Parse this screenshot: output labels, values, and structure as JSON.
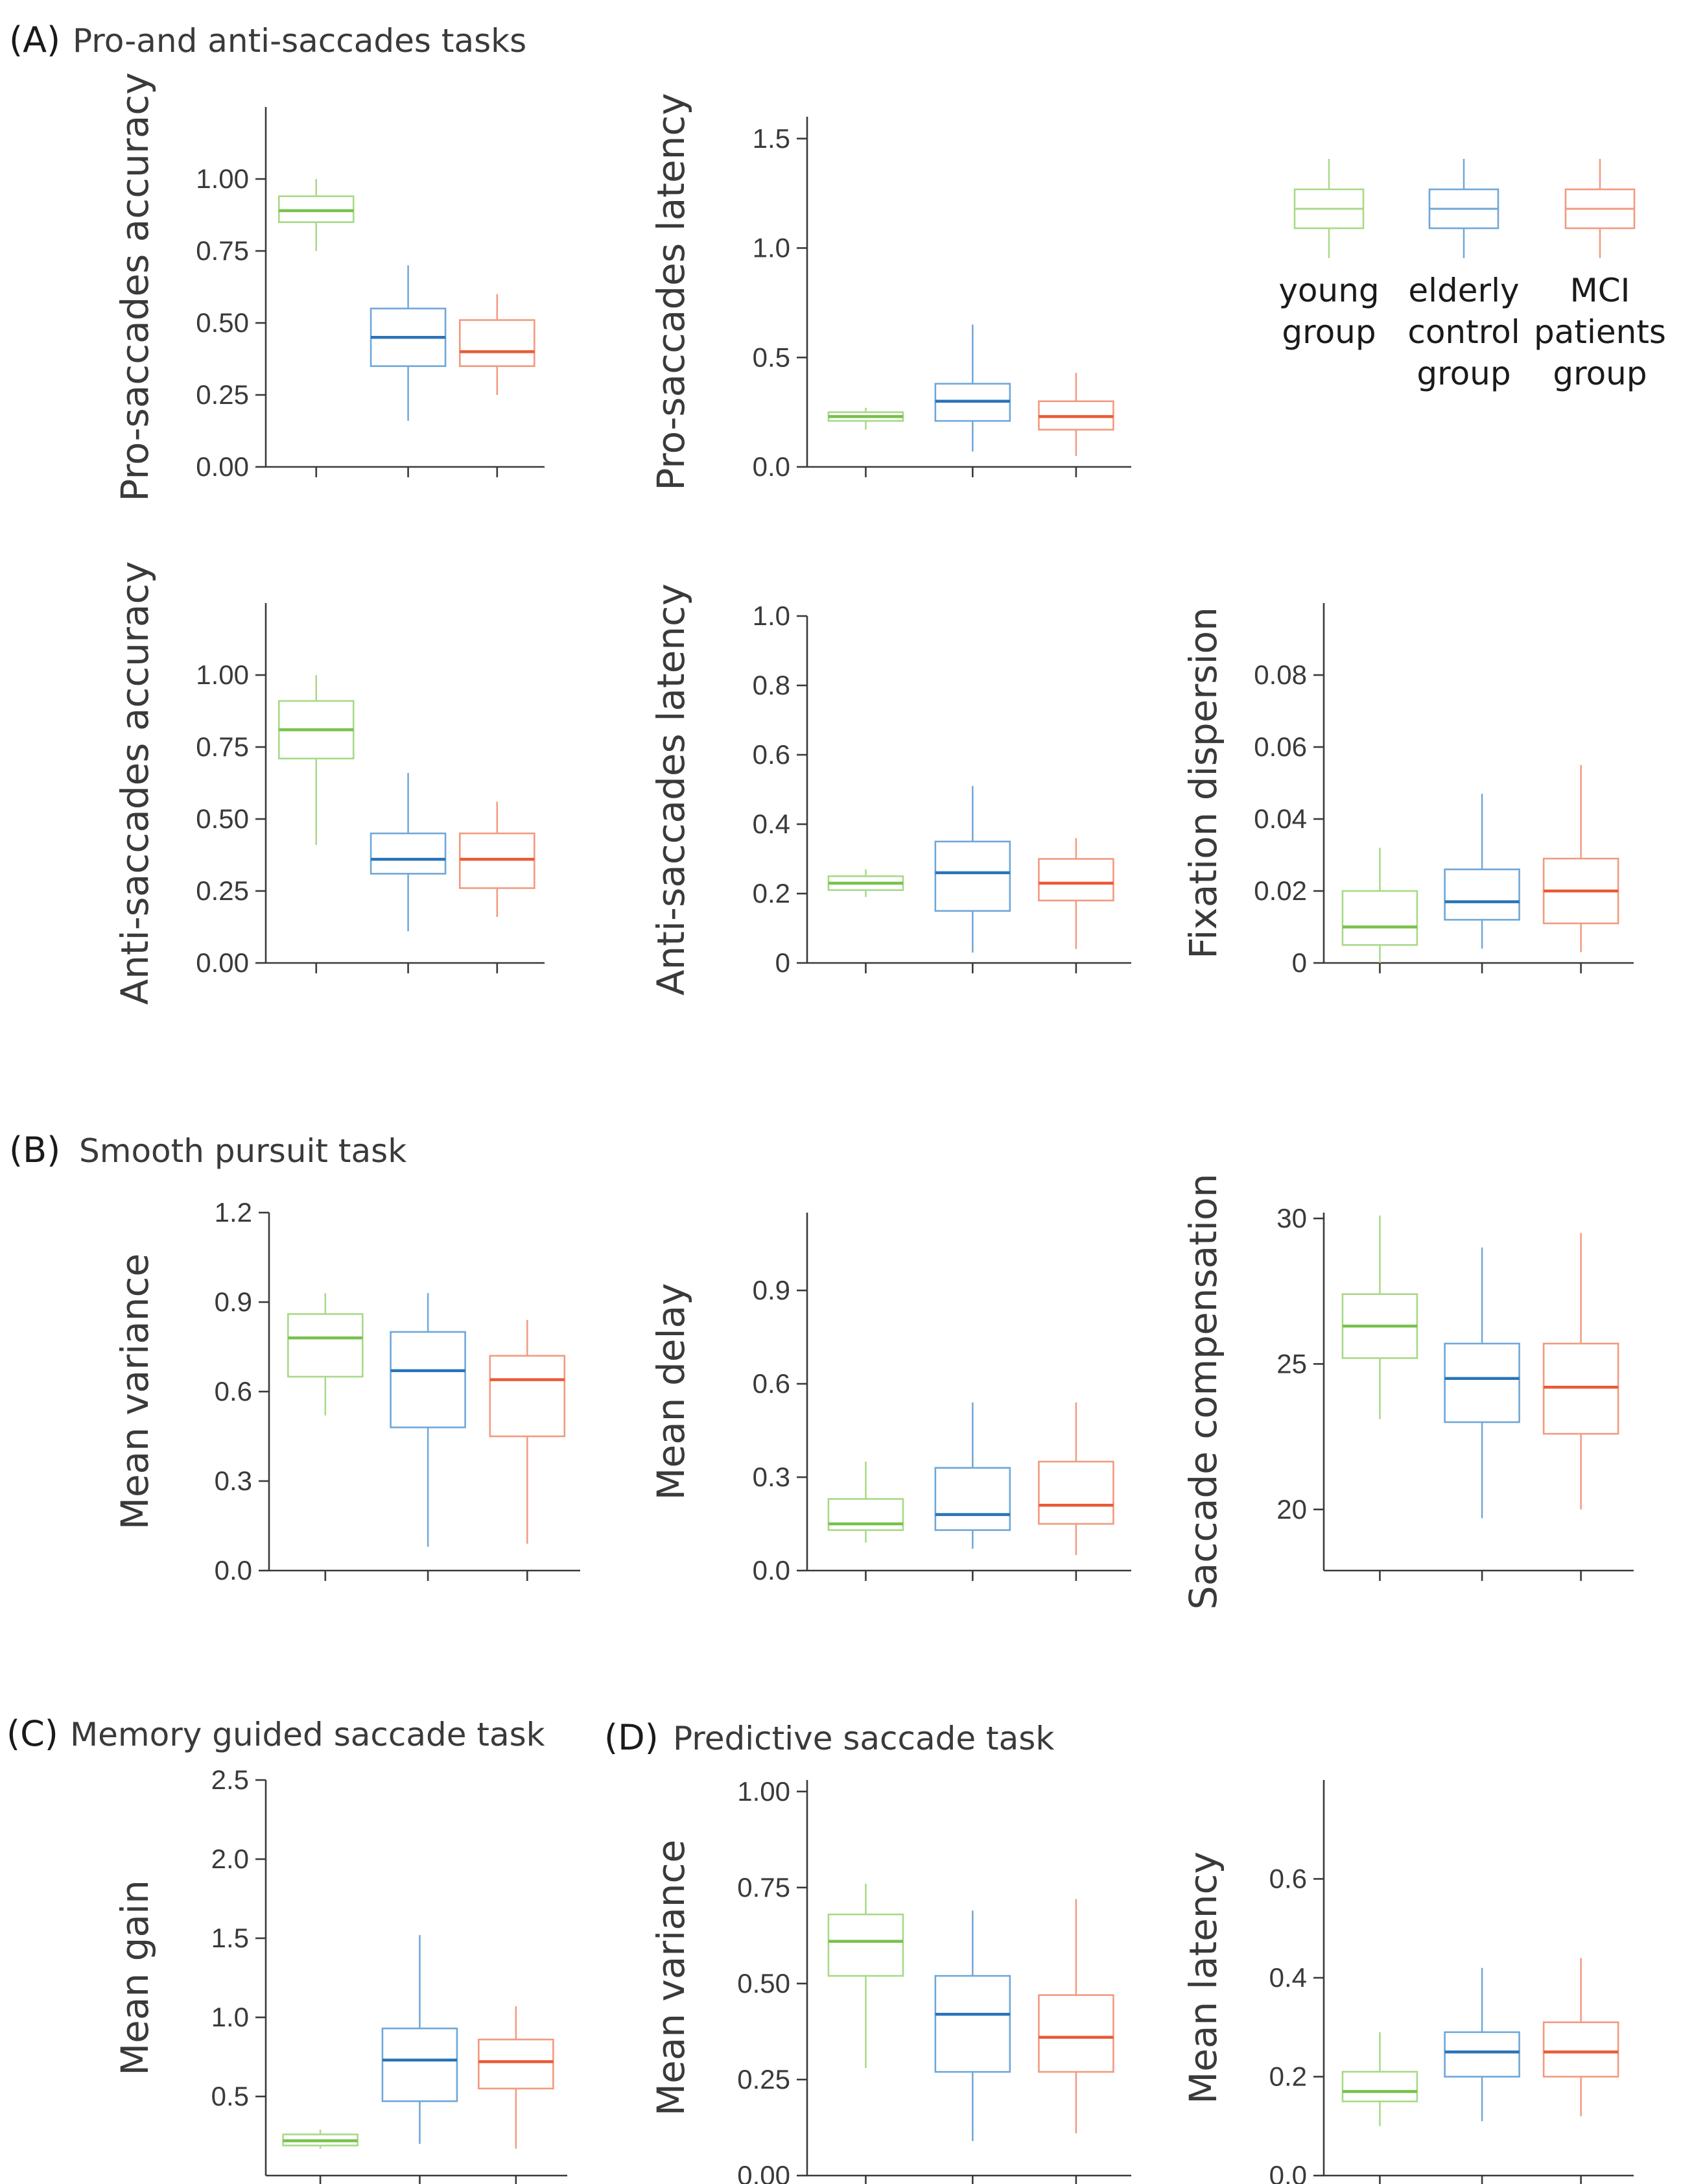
{
  "colors": {
    "young": "#77c14a",
    "elderly": "#2a73b8",
    "mci": "#ea5a35",
    "young_light": "#a8d987",
    "elderly_light": "#6fa7d9",
    "mci_light": "#f29a7e"
  },
  "sections": [
    {
      "id": "A",
      "letter": "(A)",
      "title": "Pro-and anti-saccades tasks"
    },
    {
      "id": "B",
      "letter": "(B)",
      "title": "Smooth pursuit task"
    },
    {
      "id": "C",
      "letter": "(C)",
      "title": "Memory guided saccade task"
    },
    {
      "id": "D",
      "letter": "(D)",
      "title": "Predictive saccade task"
    }
  ],
  "legend": {
    "entries": [
      {
        "group": "young",
        "lines": [
          "young",
          "group"
        ]
      },
      {
        "group": "elderly",
        "lines": [
          "elderly",
          "control",
          "group"
        ]
      },
      {
        "group": "mci",
        "lines": [
          "MCI",
          "patients",
          "group"
        ]
      }
    ]
  },
  "chart_data": [
    {
      "id": "pro_acc",
      "type": "box",
      "ylabel": "Pro-saccades accuracy",
      "ylim": [
        0,
        1.25
      ],
      "yticks": [
        0,
        0.25,
        0.5,
        0.75,
        1.0
      ],
      "ytick_labels": [
        "0.00",
        "0.25",
        "0.50",
        "0.75",
        "1.00"
      ],
      "groups": [
        "young group",
        "elderly control group",
        "MCI patients group"
      ],
      "boxes": [
        {
          "group": "young",
          "min": 0.75,
          "q1": 0.85,
          "median": 0.89,
          "q3": 0.94,
          "max": 1.0
        },
        {
          "group": "elderly",
          "min": 0.16,
          "q1": 0.35,
          "median": 0.45,
          "q3": 0.55,
          "max": 0.7
        },
        {
          "group": "mci",
          "min": 0.25,
          "q1": 0.35,
          "median": 0.4,
          "q3": 0.51,
          "max": 0.6
        }
      ]
    },
    {
      "id": "pro_lat",
      "type": "box",
      "ylabel": "Pro-saccades latency",
      "ylim": [
        0,
        1.6
      ],
      "yticks": [
        0,
        0.5,
        1.0,
        1.5
      ],
      "ytick_labels": [
        "0.0",
        "0.5",
        "1.0",
        "1.5"
      ],
      "groups": [
        "young group",
        "elderly control group",
        "MCI patients group"
      ],
      "boxes": [
        {
          "group": "young",
          "min": 0.17,
          "q1": 0.21,
          "median": 0.23,
          "q3": 0.25,
          "max": 0.27
        },
        {
          "group": "elderly",
          "min": 0.07,
          "q1": 0.21,
          "median": 0.3,
          "q3": 0.38,
          "max": 0.65
        },
        {
          "group": "mci",
          "min": 0.05,
          "q1": 0.17,
          "median": 0.23,
          "q3": 0.3,
          "max": 0.43
        }
      ]
    },
    {
      "id": "anti_acc",
      "type": "box",
      "ylabel": "Anti-saccades accuracy",
      "ylim": [
        0,
        1.25
      ],
      "yticks": [
        0,
        0.25,
        0.5,
        0.75,
        1.0
      ],
      "ytick_labels": [
        "0.00",
        "0.25",
        "0.50",
        "0.75",
        "1.00"
      ],
      "groups": [
        "young group",
        "elderly control group",
        "MCI patients group"
      ],
      "boxes": [
        {
          "group": "young",
          "min": 0.41,
          "q1": 0.71,
          "median": 0.81,
          "q3": 0.91,
          "max": 1.0
        },
        {
          "group": "elderly",
          "min": 0.11,
          "q1": 0.31,
          "median": 0.36,
          "q3": 0.45,
          "max": 0.66
        },
        {
          "group": "mci",
          "min": 0.16,
          "q1": 0.26,
          "median": 0.36,
          "q3": 0.45,
          "max": 0.56
        }
      ]
    },
    {
      "id": "anti_lat",
      "type": "box",
      "ylabel": "Anti-saccades latency",
      "ylim": [
        0,
        1.0
      ],
      "yticks": [
        0,
        0.2,
        0.4,
        0.6,
        0.8,
        1.0
      ],
      "ytick_labels": [
        "0",
        "0.2",
        "0.4",
        "0.6",
        "0.8",
        "1.0"
      ],
      "groups": [
        "young group",
        "elderly control group",
        "MCI patients group"
      ],
      "boxes": [
        {
          "group": "young",
          "min": 0.19,
          "q1": 0.21,
          "median": 0.23,
          "q3": 0.25,
          "max": 0.27
        },
        {
          "group": "elderly",
          "min": 0.03,
          "q1": 0.15,
          "median": 0.26,
          "q3": 0.35,
          "max": 0.51
        },
        {
          "group": "mci",
          "min": 0.04,
          "q1": 0.18,
          "median": 0.23,
          "q3": 0.3,
          "max": 0.36
        }
      ]
    },
    {
      "id": "fix_disp",
      "type": "box",
      "ylabel": "Fixation dispersion",
      "ylim": [
        0,
        0.1
      ],
      "yticks": [
        0,
        0.02,
        0.04,
        0.06,
        0.08
      ],
      "ytick_labels": [
        "0",
        "0.02",
        "0.04",
        "0.06",
        "0.08"
      ],
      "groups": [
        "young group",
        "elderly control group",
        "MCI patients group"
      ],
      "boxes": [
        {
          "group": "young",
          "min": 0.0,
          "q1": 0.005,
          "median": 0.01,
          "q3": 0.02,
          "max": 0.032
        },
        {
          "group": "elderly",
          "min": 0.004,
          "q1": 0.012,
          "median": 0.017,
          "q3": 0.026,
          "max": 0.047
        },
        {
          "group": "mci",
          "min": 0.003,
          "q1": 0.011,
          "median": 0.02,
          "q3": 0.029,
          "max": 0.055
        }
      ]
    },
    {
      "id": "sp_var",
      "type": "box",
      "ylabel": "Mean variance",
      "ylim": [
        0,
        1.2
      ],
      "yticks": [
        0,
        0.3,
        0.6,
        0.9,
        1.2
      ],
      "ytick_labels": [
        "0.0",
        "0.3",
        "0.6",
        "0.9",
        "1.2"
      ],
      "groups": [
        "young group",
        "elderly control group",
        "MCI patients group"
      ],
      "boxes": [
        {
          "group": "young",
          "min": 0.52,
          "q1": 0.65,
          "median": 0.78,
          "q3": 0.86,
          "max": 0.93
        },
        {
          "group": "elderly",
          "min": 0.08,
          "q1": 0.48,
          "median": 0.67,
          "q3": 0.8,
          "max": 0.93
        },
        {
          "group": "mci",
          "min": 0.09,
          "q1": 0.45,
          "median": 0.64,
          "q3": 0.72,
          "max": 0.84
        }
      ]
    },
    {
      "id": "sp_delay",
      "type": "box",
      "ylabel": "Mean delay",
      "ylim": [
        0,
        1.15
      ],
      "yticks": [
        0,
        0.3,
        0.6,
        0.9
      ],
      "ytick_labels": [
        "0.0",
        "0.3",
        "0.6",
        "0.9"
      ],
      "groups": [
        "young group",
        "elderly control group",
        "MCI patients group"
      ],
      "boxes": [
        {
          "group": "young",
          "min": 0.09,
          "q1": 0.13,
          "median": 0.15,
          "q3": 0.23,
          "max": 0.35
        },
        {
          "group": "elderly",
          "min": 0.07,
          "q1": 0.13,
          "median": 0.18,
          "q3": 0.33,
          "max": 0.54
        },
        {
          "group": "mci",
          "min": 0.05,
          "q1": 0.15,
          "median": 0.21,
          "q3": 0.35,
          "max": 0.54
        }
      ]
    },
    {
      "id": "sp_comp",
      "type": "box",
      "ylabel": "Saccade compensation",
      "ylim": [
        17.9,
        30.2
      ],
      "yticks": [
        20,
        25,
        30
      ],
      "ytick_labels": [
        "20",
        "25",
        "30"
      ],
      "groups": [
        "young group",
        "elderly control group",
        "MCI patients group"
      ],
      "boxes": [
        {
          "group": "young",
          "min": 23.1,
          "q1": 25.2,
          "median": 26.3,
          "q3": 27.4,
          "max": 30.1
        },
        {
          "group": "elderly",
          "min": 19.7,
          "q1": 23.0,
          "median": 24.5,
          "q3": 25.7,
          "max": 29.0
        },
        {
          "group": "mci",
          "min": 20.0,
          "q1": 22.6,
          "median": 24.2,
          "q3": 25.7,
          "max": 29.5
        }
      ]
    },
    {
      "id": "mg_gain",
      "type": "box",
      "ylabel": "Mean gain",
      "ylim": [
        0.0,
        2.5
      ],
      "yticks": [
        0.5,
        1.0,
        1.5,
        2.0,
        2.5
      ],
      "ytick_labels": [
        "0.5",
        "1.0",
        "1.5",
        "2.0",
        "2.5"
      ],
      "groups": [
        "young group",
        "elderly control group",
        "MCI patients group"
      ],
      "boxes": [
        {
          "group": "young",
          "min": 0.17,
          "q1": 0.19,
          "median": 0.22,
          "q3": 0.26,
          "max": 0.29
        },
        {
          "group": "elderly",
          "min": 0.2,
          "q1": 0.47,
          "median": 0.73,
          "q3": 0.93,
          "max": 1.52
        },
        {
          "group": "mci",
          "min": 0.17,
          "q1": 0.55,
          "median": 0.72,
          "q3": 0.86,
          "max": 1.07
        }
      ]
    },
    {
      "id": "ps_var",
      "type": "box",
      "ylabel": "Mean variance",
      "ylim": [
        0,
        1.03
      ],
      "yticks": [
        0,
        0.25,
        0.5,
        0.75,
        1.0
      ],
      "ytick_labels": [
        "0.00",
        "0.25",
        "0.50",
        "0.75",
        "1.00"
      ],
      "groups": [
        "young group",
        "elderly control group",
        "MCI patients group"
      ],
      "boxes": [
        {
          "group": "young",
          "min": 0.28,
          "q1": 0.52,
          "median": 0.61,
          "q3": 0.68,
          "max": 0.76
        },
        {
          "group": "elderly",
          "min": 0.09,
          "q1": 0.27,
          "median": 0.42,
          "q3": 0.52,
          "max": 0.69
        },
        {
          "group": "mci",
          "min": 0.11,
          "q1": 0.27,
          "median": 0.36,
          "q3": 0.47,
          "max": 0.72
        }
      ]
    },
    {
      "id": "ps_lat",
      "type": "box",
      "ylabel": "Mean latency",
      "ylim": [
        0,
        0.8
      ],
      "yticks": [
        0,
        0.2,
        0.4,
        0.6
      ],
      "ytick_labels": [
        "0.0",
        "0.2",
        "0.4",
        "0.6"
      ],
      "groups": [
        "young group",
        "elderly control group",
        "MCI patients group"
      ],
      "boxes": [
        {
          "group": "young",
          "min": 0.1,
          "q1": 0.15,
          "median": 0.17,
          "q3": 0.21,
          "max": 0.29
        },
        {
          "group": "elderly",
          "min": 0.11,
          "q1": 0.2,
          "median": 0.25,
          "q3": 0.29,
          "max": 0.42
        },
        {
          "group": "mci",
          "min": 0.12,
          "q1": 0.2,
          "median": 0.25,
          "q3": 0.31,
          "max": 0.44
        }
      ]
    }
  ]
}
